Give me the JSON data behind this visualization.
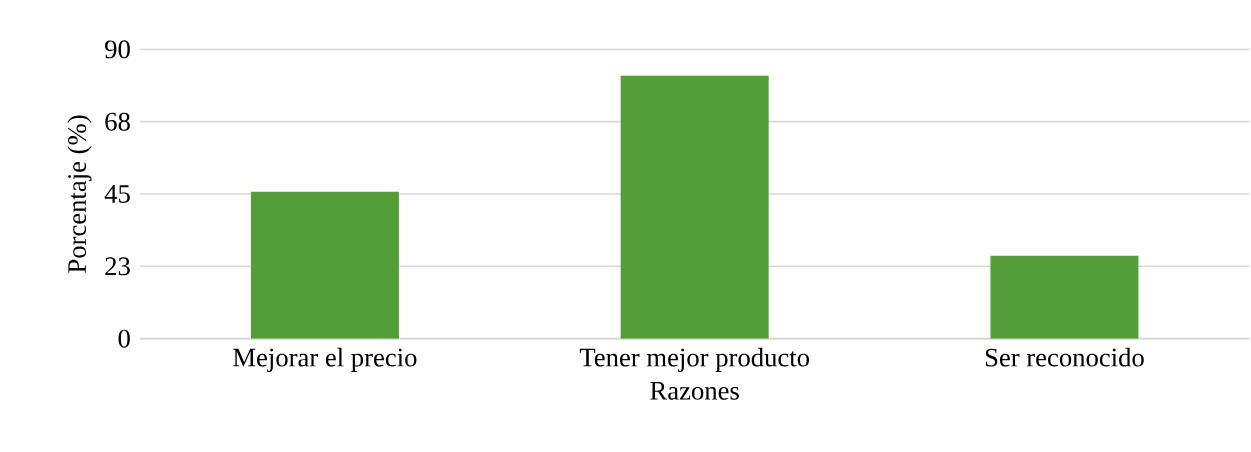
{
  "chart_data": {
    "type": "bar",
    "xlabel": "Razones",
    "ylabel": "Porcentaje (%)",
    "categories": [
      "Mejorar el precio",
      "Tener mejor producto",
      "Ser reconocido"
    ],
    "values": [
      45.7,
      81.8,
      25.8
    ],
    "color": "#549e39",
    "ylim": [
      0,
      90
    ],
    "yticks": [
      0,
      {
        "value": 22.5,
        "label": "23"
      },
      45,
      {
        "value": 67.5,
        "label": "68"
      },
      90
    ],
    "grid": "y"
  }
}
